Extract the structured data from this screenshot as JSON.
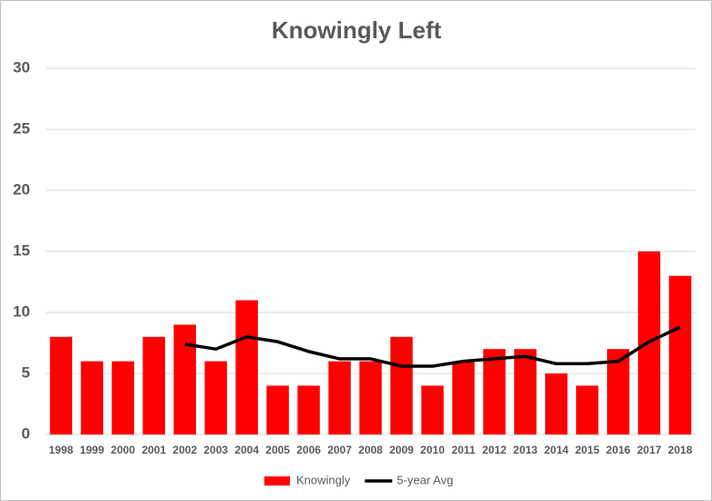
{
  "chart_data": {
    "type": "bar",
    "title": "Knowingly Left",
    "categories": [
      "1998",
      "1999",
      "2000",
      "2001",
      "2002",
      "2003",
      "2004",
      "2005",
      "2006",
      "2007",
      "2008",
      "2009",
      "2010",
      "2011",
      "2012",
      "2013",
      "2014",
      "2015",
      "2016",
      "2017",
      "2018"
    ],
    "series": [
      {
        "name": "Knowingly",
        "type": "bar",
        "color": "#ff0000",
        "values": [
          8,
          6,
          6,
          8,
          9,
          6,
          11,
          4,
          4,
          6,
          6,
          8,
          4,
          6,
          7,
          7,
          5,
          4,
          7,
          15,
          13
        ]
      },
      {
        "name": "5-year Avg",
        "type": "line",
        "color": "#000000",
        "values": [
          null,
          null,
          null,
          null,
          7.4,
          7,
          8,
          7.6,
          6.8,
          6.2,
          6.2,
          5.6,
          5.6,
          6,
          6.2,
          6.4,
          5.8,
          5.8,
          6,
          7.6,
          8.8
        ]
      }
    ],
    "ylim": [
      0,
      30
    ],
    "yticks": [
      0,
      5,
      10,
      15,
      20,
      25,
      30
    ],
    "grid": true,
    "legend": "bottom"
  }
}
